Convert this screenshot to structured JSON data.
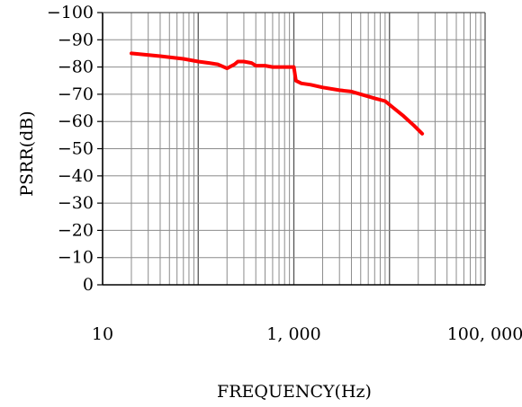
{
  "chart_data": {
    "type": "line",
    "xscale": "log",
    "xlim": [
      10,
      100000
    ],
    "ylim": [
      0,
      -100
    ],
    "xlabel": "FREQUENCY(Hz)",
    "ylabel": "PSRR(dB)",
    "x_ticks": [
      {
        "value": 10,
        "label": "10"
      },
      {
        "value": 1000,
        "label": "1, 000"
      },
      {
        "value": 100000,
        "label": "100, 000"
      }
    ],
    "y_ticks": [
      {
        "value": -100,
        "label": "−100"
      },
      {
        "value": -90,
        "label": "−90"
      },
      {
        "value": -80,
        "label": "−80"
      },
      {
        "value": -70,
        "label": "−70"
      },
      {
        "value": -60,
        "label": "−60"
      },
      {
        "value": -50,
        "label": "−50"
      },
      {
        "value": -40,
        "label": "−40"
      },
      {
        "value": -30,
        "label": "−30"
      },
      {
        "value": -20,
        "label": "−20"
      },
      {
        "value": -10,
        "label": "−10"
      },
      {
        "value": 0,
        "label": "0"
      }
    ],
    "grid": true,
    "line_color": "#ff0000",
    "series": [
      {
        "x": [
          20,
          40,
          70,
          100,
          130,
          160,
          200,
          240,
          260,
          300,
          360,
          400,
          500,
          600,
          700,
          800,
          900,
          1000,
          1050,
          1200,
          1500,
          2000,
          3000,
          4000,
          5000,
          7000,
          9000,
          11000,
          14000,
          18000,
          22000
        ],
        "y": [
          -85,
          -84,
          -83,
          -82,
          -81.5,
          -81,
          -79.5,
          -81,
          -82,
          -82,
          -81.5,
          -80.5,
          -80.5,
          -80,
          -80,
          -80,
          -80,
          -80,
          -75,
          -74,
          -73.5,
          -72.5,
          -71.5,
          -71,
          -70,
          -68.5,
          -67.5,
          -65,
          -62,
          -58.5,
          -55.5
        ]
      }
    ]
  }
}
